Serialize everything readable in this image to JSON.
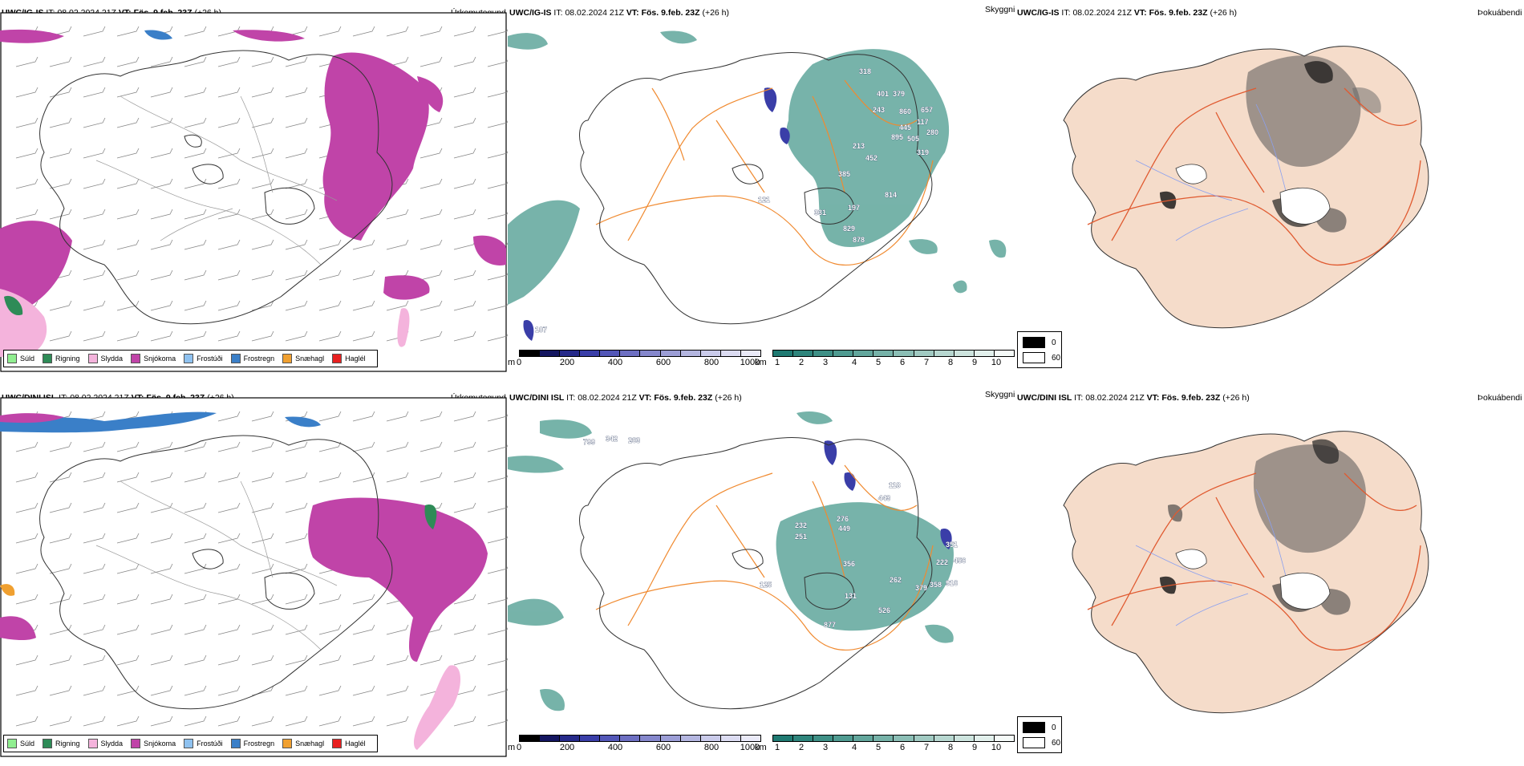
{
  "rows": [
    {
      "precip": {
        "model": "UWC/IG-IS",
        "it_label": "IT:",
        "it_value": "08.02.2024 21Z",
        "vt_label": "VT:",
        "vt_value": "Fös. 9.feb. 23Z",
        "lead": "(+26 h)",
        "variable": "Úrkomutegund"
      },
      "cloud": {
        "model": "UWC/IG-IS",
        "it_label": "IT:",
        "it_value": "08.02.2024 21Z",
        "vt_label": "VT:",
        "vt_value": "Fös. 9.feb. 23Z",
        "lead": "(+26 h)",
        "variable": "Skyggni",
        "labels": [
          "318",
          "401",
          "379",
          "243",
          "860",
          "657",
          "117",
          "445",
          "280",
          "895",
          "505",
          "319",
          "452",
          "385",
          "213",
          "121",
          "814",
          "197",
          "829",
          "878",
          "331",
          "107"
        ]
      },
      "fog": {
        "model": "UWC/IG-IS",
        "it_label": "IT:",
        "it_value": "08.02.2024 21Z",
        "vt_label": "VT:",
        "vt_value": "Fös. 9.feb. 23Z",
        "lead": "(+26 h)",
        "variable": "Þokuábendi"
      }
    },
    {
      "precip": {
        "model": "UWC/DINI ISL",
        "it_label": "IT:",
        "it_value": "08.02.2024 21Z",
        "vt_label": "VT:",
        "vt_value": "Fös. 9.feb. 23Z",
        "lead": "(+26 h)",
        "variable": "Úrkomutegund"
      },
      "cloud": {
        "model": "UWC/DINI ISL",
        "it_label": "IT:",
        "it_value": "08.02.2024 21Z",
        "vt_label": "VT:",
        "vt_value": "Fös. 9.feb. 23Z",
        "lead": "(+26 h)",
        "variable": "Skyggni",
        "labels": [
          "799",
          "342",
          "263",
          "118",
          "443",
          "276",
          "449",
          "232",
          "251",
          "356",
          "351",
          "222",
          "456",
          "916",
          "358",
          "379",
          "262",
          "125",
          "131",
          "877",
          "526"
        ]
      },
      "fog": {
        "model": "UWC/DINI ISL",
        "it_label": "IT:",
        "it_value": "08.02.2024 21Z",
        "vt_label": "VT:",
        "vt_value": "Fös. 9.feb. 23Z",
        "lead": "(+26 h)",
        "variable": "Þokuábendi"
      }
    }
  ],
  "precip_legend": [
    {
      "label": "Súld",
      "color": "#90ee90"
    },
    {
      "label": "Rigning",
      "color": "#2e8b57"
    },
    {
      "label": "Slydda",
      "color": "#f4b3dc"
    },
    {
      "label": "Snjókoma",
      "color": "#c044a8"
    },
    {
      "label": "Frostúði",
      "color": "#8fc2f0"
    },
    {
      "label": "Frostregn",
      "color": "#3a7fc8"
    },
    {
      "label": "Snæhagl",
      "color": "#f0a030"
    },
    {
      "label": "Haglél",
      "color": "#e82020"
    }
  ],
  "ceiling_scale": {
    "unit": "m",
    "ticks": [
      "0",
      "200",
      "400",
      "600",
      "800",
      "1000"
    ],
    "colors": [
      "#000000",
      "#141660",
      "#262a8a",
      "#3a3ea8",
      "#5357b8",
      "#6d6fc2",
      "#8587cc",
      "#9c9ed6",
      "#b4b6e0",
      "#cacbea",
      "#dcdcf2",
      "#eaeaf8"
    ]
  },
  "visibility_scale": {
    "unit": "km",
    "ticks": [
      "1",
      "2",
      "3",
      "4",
      "5",
      "6",
      "7",
      "8",
      "9",
      "10"
    ],
    "colors": [
      "#1f7a72",
      "#2e857c",
      "#3e9086",
      "#4f9b91",
      "#62a69c",
      "#76b2a8",
      "#8bbeb5",
      "#a1cac2",
      "#b7d7d0",
      "#cde4de",
      "#e2f0ec",
      "#f5faf8"
    ]
  },
  "fog_legend": [
    {
      "label": "0",
      "color": "#000000"
    },
    {
      "label": "60",
      "color": "#ffffff"
    }
  ],
  "colors": {
    "land_fog": "#f5dcca",
    "road": "#f08a30",
    "road_fog": "#e05a30",
    "coast": "#333333"
  }
}
